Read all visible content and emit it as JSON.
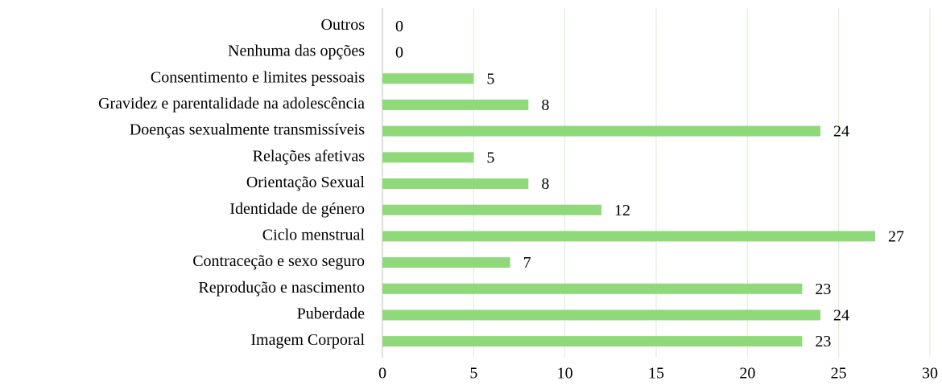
{
  "chart_data": {
    "type": "bar",
    "orientation": "horizontal",
    "categories": [
      "Outros",
      "Nenhuma das opções",
      "Consentimento e limites pessoais",
      "Gravidez e parentalidade na adolescência",
      "Doenças sexualmente transmissíveis",
      "Relações afetivas",
      "Orientação Sexual",
      "Identidade de género",
      "Ciclo menstrual",
      "Contraceção e sexo seguro",
      "Reprodução e nascimento",
      "Puberdade",
      "Imagem Corporal"
    ],
    "values": [
      0,
      0,
      5,
      8,
      24,
      5,
      8,
      12,
      27,
      7,
      23,
      24,
      23
    ],
    "color": "#8fd97a",
    "xlim": [
      0,
      30
    ],
    "xticks": [
      0,
      5,
      10,
      15,
      20,
      25,
      30
    ],
    "grid": true
  }
}
